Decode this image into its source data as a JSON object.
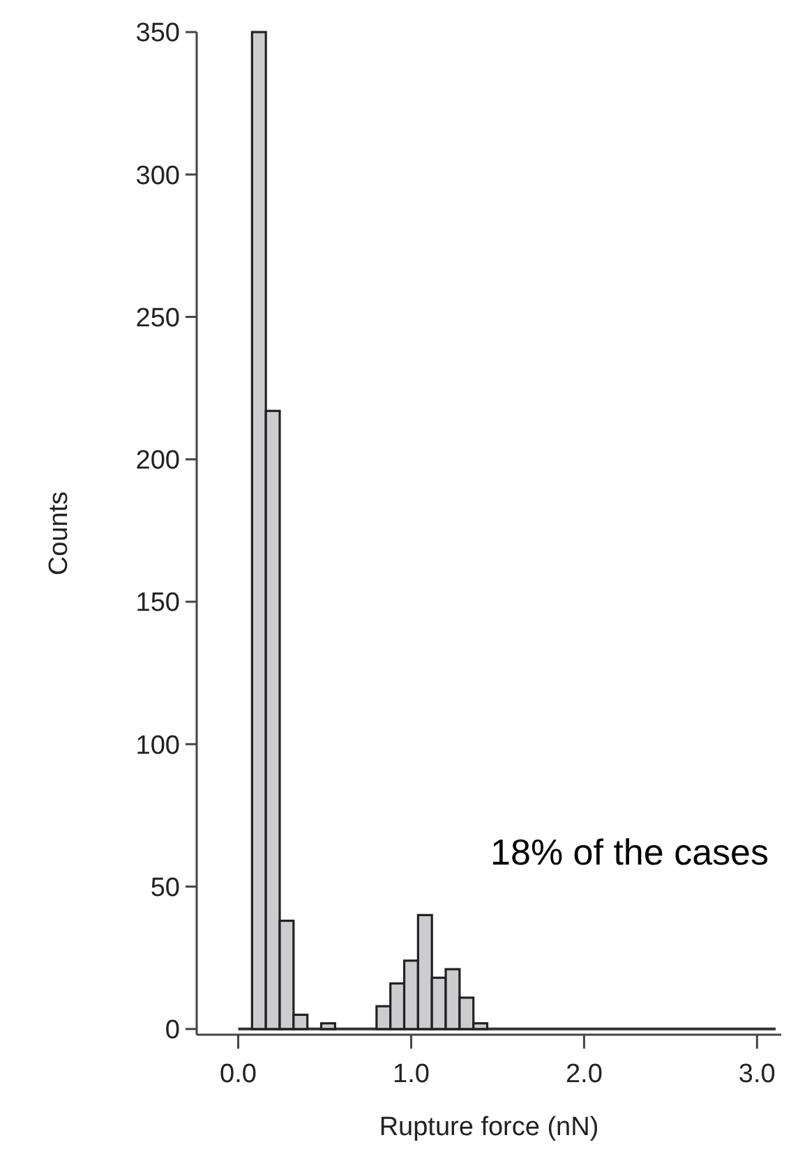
{
  "chart_data": {
    "type": "histogram",
    "xlabel": "Rupture force (nN)",
    "ylabel": "Counts",
    "bins": [
      0.08,
      0.16,
      0.24,
      0.32,
      0.4,
      0.48,
      0.56,
      0.64,
      0.72,
      0.8,
      0.88,
      0.96,
      1.04,
      1.12,
      1.2,
      1.28,
      1.36,
      1.44
    ],
    "values": [
      350,
      217,
      38,
      5,
      0,
      2,
      0,
      0,
      0,
      8,
      16,
      24,
      40,
      18,
      21,
      11,
      2
    ],
    "color": "#cdcdd0",
    "xlim": [
      -0.24,
      3.14
    ],
    "xticks": [
      {
        "value": 0,
        "label": "0.0"
      },
      {
        "value": 1,
        "label": "1.0"
      },
      {
        "value": 2,
        "label": "2.0"
      },
      {
        "value": 3,
        "label": "3.0"
      }
    ],
    "ylim": [
      -2,
      350
    ],
    "yticks": [
      0,
      50,
      100,
      150,
      200,
      250,
      300,
      350
    ],
    "ref_lines": [
      {
        "axis": "y",
        "value": 0,
        "color": "#333333"
      }
    ],
    "annotations": [
      "18% of the cases"
    ],
    "grid": false
  }
}
